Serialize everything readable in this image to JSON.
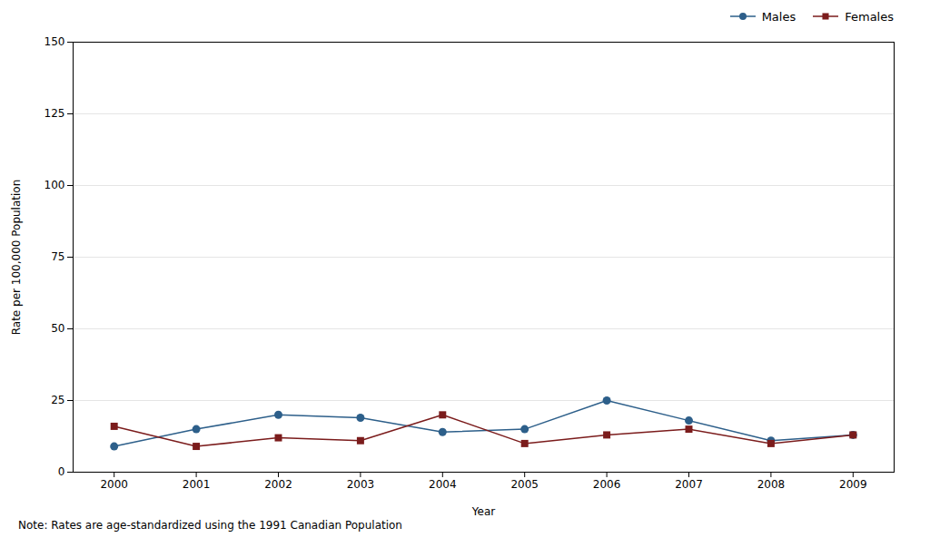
{
  "chart_data": {
    "type": "line",
    "xlabel": "Year",
    "ylabel": "Rate per 100,000 Population",
    "x": [
      2000,
      2001,
      2002,
      2003,
      2004,
      2005,
      2006,
      2007,
      2008,
      2009
    ],
    "series": [
      {
        "name": "Males",
        "color": "#2d5f8a",
        "marker": "circle",
        "values": [
          9,
          15,
          20,
          19,
          14,
          15,
          25,
          18,
          11,
          13
        ]
      },
      {
        "name": "Females",
        "color": "#7b1c1c",
        "marker": "square",
        "values": [
          16,
          9,
          12,
          11,
          20,
          10,
          13,
          15,
          10,
          13
        ]
      }
    ],
    "xlim": [
      1999.5,
      2009.5
    ],
    "xticks": [
      2000,
      2001,
      2002,
      2003,
      2004,
      2005,
      2006,
      2007,
      2008,
      2009
    ],
    "ylim": [
      0,
      150
    ],
    "yticks": [
      0,
      25,
      50,
      75,
      100,
      125,
      150
    ],
    "grid": "y",
    "legend": "upper right",
    "annotations": [
      "Note: Rates are age-standardized using the 1991 Canadian Population"
    ]
  }
}
